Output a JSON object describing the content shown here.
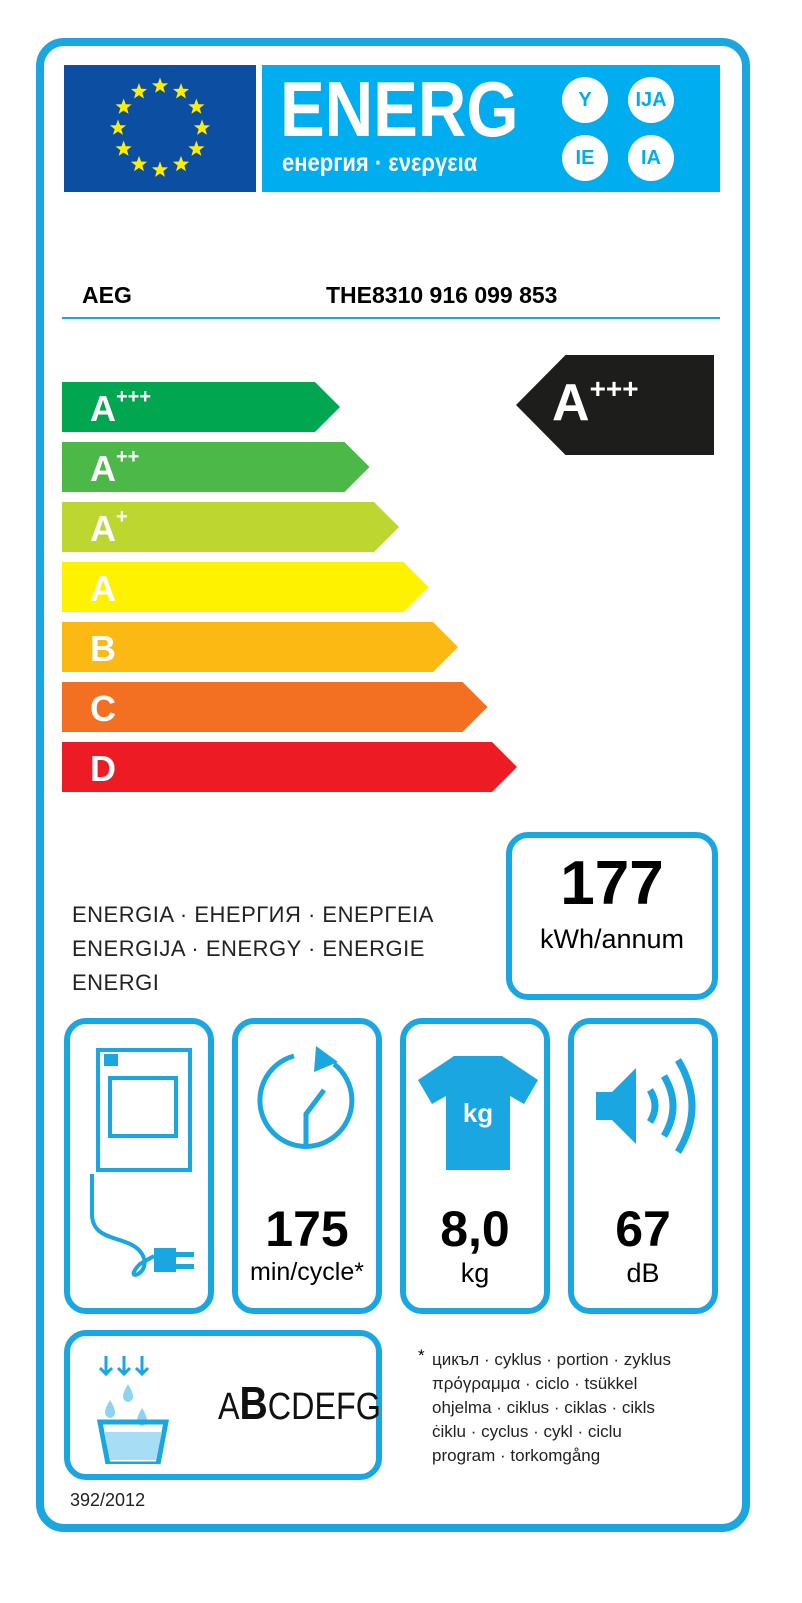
{
  "header": {
    "logo": "ENERG",
    "subtitle": "енергия · ενεργεια",
    "suffixes": [
      "Y",
      "IJA",
      "IE",
      "IA"
    ]
  },
  "supplier": "AEG",
  "model": "THE8310  916 099 853",
  "scale": [
    {
      "label": "A",
      "sup": "+++",
      "color": "#00a650"
    },
    {
      "label": "A",
      "sup": "++",
      "color": "#4cb848"
    },
    {
      "label": "A",
      "sup": "+",
      "color": "#bed630"
    },
    {
      "label": "A",
      "sup": "",
      "color": "#fff200"
    },
    {
      "label": "B",
      "sup": "",
      "color": "#fcb813"
    },
    {
      "label": "C",
      "sup": "",
      "color": "#f36f21"
    },
    {
      "label": "D",
      "sup": "",
      "color": "#ed1c24"
    }
  ],
  "rating": {
    "label": "A",
    "sup": "+++"
  },
  "energy_words": [
    "ENERGIA · ЕНЕРГИЯ · ΕΝΕΡΓΕΙΑ",
    "ENERGIJA · ENERGY · ENERGIE",
    "ENERGI"
  ],
  "consumption": {
    "value": "177",
    "unit": "kWh/annum"
  },
  "cycle": {
    "value": "175",
    "unit": "min/cycle*"
  },
  "capacity": {
    "value": "8,0",
    "unit": "kg",
    "icon_text": "kg"
  },
  "noise": {
    "value": "67",
    "unit": "dB"
  },
  "condensation": {
    "classes_pre": "A",
    "selected": "B",
    "classes_post": "CDEFG"
  },
  "footnote": [
    "*",
    "цикъл · cyklus · portion · zyklus",
    "πρόγραμμα · ciclo · tsükkel",
    "ohjelma · ciklus · ciklas · cikls",
    "ċiklu · cyclus · cykl · ciclu",
    "program · torkomgång"
  ],
  "regulation": "392/2012",
  "colors": {
    "accent": "#1aa6e0",
    "flag": "#0b4ea2",
    "star": "#ffed00"
  }
}
